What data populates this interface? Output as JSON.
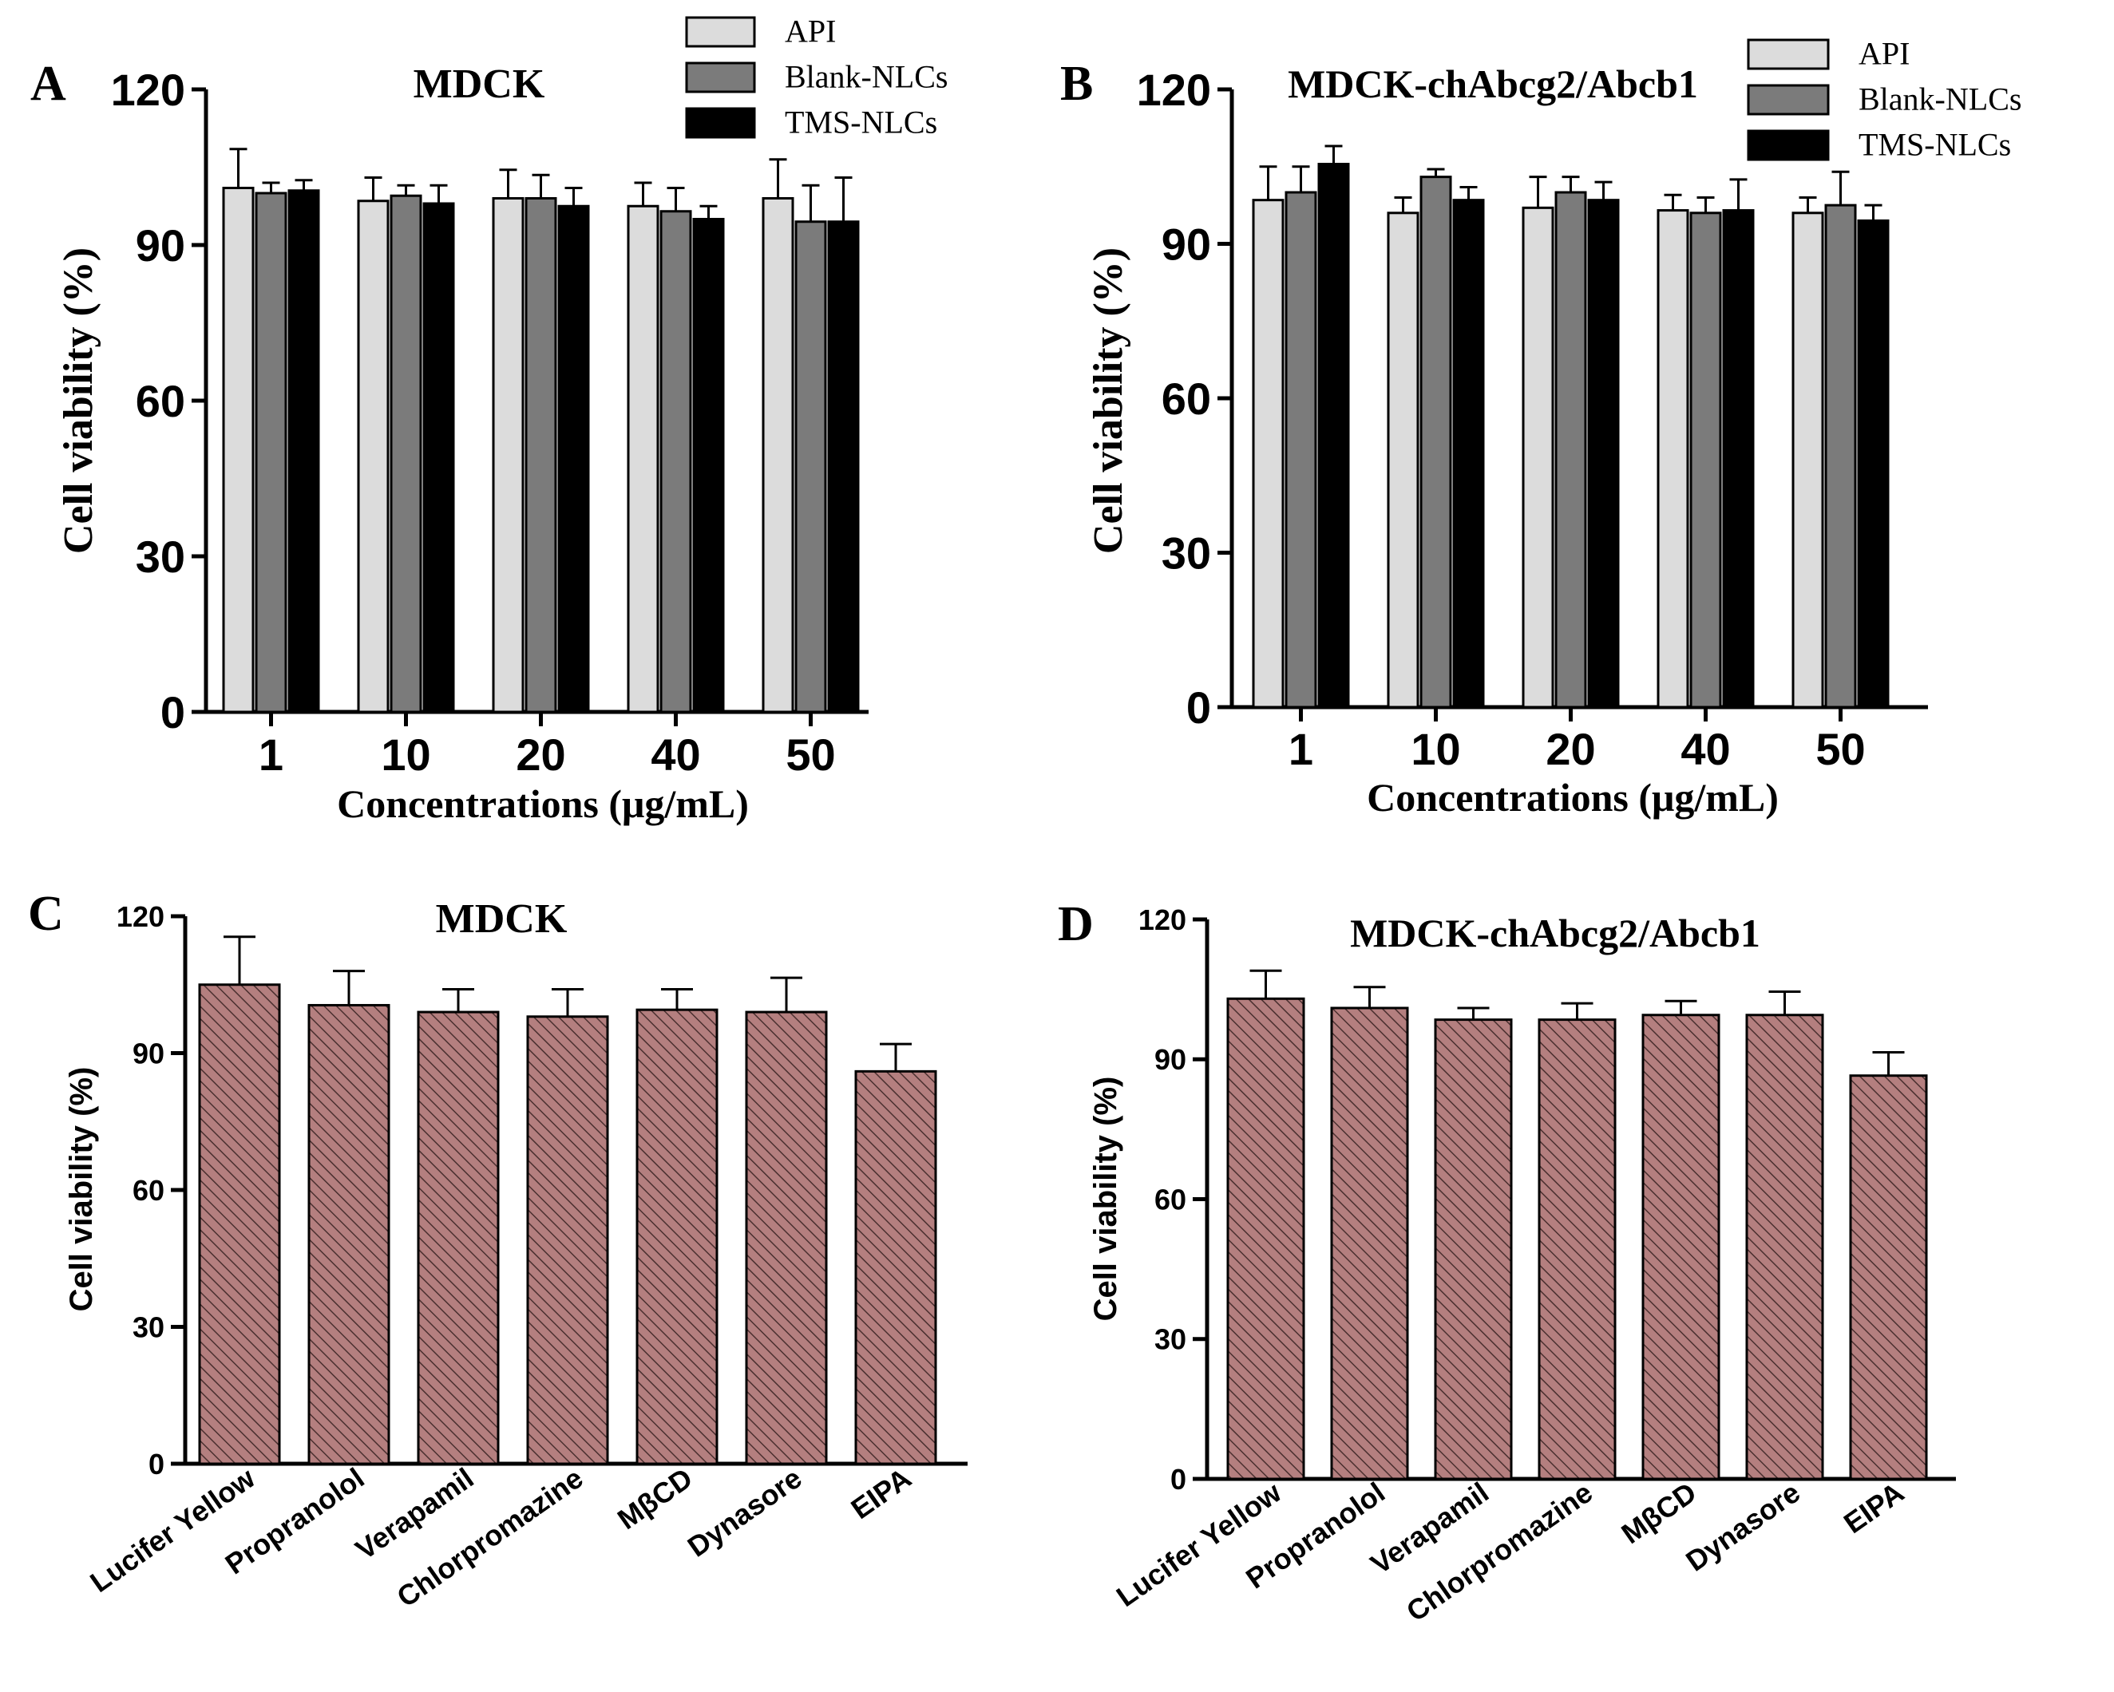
{
  "chart_data": [
    {
      "panel": "A",
      "type": "bar",
      "title": "MDCK",
      "xlabel": "Concentrations (μg/mL)",
      "ylabel": "Cell viability (%)",
      "ylim": [
        0,
        120
      ],
      "yticks": [
        "0",
        "30",
        "60",
        "90",
        "120"
      ],
      "categories": [
        "1",
        "10",
        "20",
        "40",
        "50"
      ],
      "legend": "top-right",
      "series": [
        {
          "name": "API",
          "color": "#dcdcdc",
          "values": [
            101,
            98.5,
            99,
            97.5,
            99
          ],
          "errors": [
            7.5,
            4.5,
            5.5,
            4.5,
            7.5
          ]
        },
        {
          "name": "Blank-NLCs",
          "color": "#7b7b7b",
          "values": [
            100,
            99.5,
            99,
            96.5,
            94.5
          ],
          "errors": [
            2,
            2,
            4.5,
            4.5,
            7
          ]
        },
        {
          "name": "TMS-NLCs",
          "color": "#000000",
          "values": [
            100.5,
            98,
            97.5,
            95,
            94.5
          ],
          "errors": [
            2,
            3.5,
            3.5,
            2.5,
            8.5
          ]
        }
      ]
    },
    {
      "panel": "B",
      "type": "bar",
      "title": "MDCK-chAbcg2/Abcb1",
      "xlabel": "Concentrations (μg/mL)",
      "ylabel": "Cell viability (%)",
      "ylim": [
        0,
        120
      ],
      "yticks": [
        "0",
        "30",
        "60",
        "90",
        "120"
      ],
      "categories": [
        "1",
        "10",
        "20",
        "40",
        "50"
      ],
      "legend": "top-right",
      "series": [
        {
          "name": "API",
          "color": "#dcdcdc",
          "values": [
            98.5,
            96,
            97,
            96.5,
            96
          ],
          "errors": [
            6.5,
            3,
            6,
            3,
            3
          ]
        },
        {
          "name": "Blank-NLCs",
          "color": "#7b7b7b",
          "values": [
            100,
            103,
            100,
            96,
            97.5
          ],
          "errors": [
            5,
            1.5,
            3,
            3,
            6.5
          ]
        },
        {
          "name": "TMS-NLCs",
          "color": "#000000",
          "values": [
            105.5,
            98.5,
            98.5,
            96.5,
            94.5
          ],
          "errors": [
            3.5,
            2.5,
            3.5,
            6,
            3
          ]
        }
      ]
    },
    {
      "panel": "C",
      "type": "bar",
      "title": "MDCK",
      "xlabel": "",
      "ylabel": "Cell viability (%)",
      "ylim": [
        0,
        120
      ],
      "yticks": [
        "0",
        "30",
        "60",
        "90",
        "120"
      ],
      "categories": [
        "Lucifer Yellow",
        "Propranolol",
        "Verapamil",
        "Chlorpromazine",
        "MβCD",
        "Dynasore",
        "EIPA"
      ],
      "series": [
        {
          "color": "#a87474",
          "values": [
            105,
            100.5,
            99,
            98,
            99.5,
            99,
            86
          ],
          "errors": [
            10.5,
            7.5,
            5,
            6,
            4.5,
            7.5,
            6
          ]
        }
      ]
    },
    {
      "panel": "D",
      "type": "bar",
      "title": "MDCK-chAbcg2/Abcb1",
      "xlabel": "",
      "ylabel": "Cell viability (%)",
      "ylim": [
        0,
        120
      ],
      "yticks": [
        "0",
        "30",
        "60",
        "90",
        "120"
      ],
      "categories": [
        "Lucifer Yellow",
        "Propranolol",
        "Verapamil",
        "Chlorpromazine",
        "MβCD",
        "Dynasore",
        "EIPA"
      ],
      "series": [
        {
          "color": "#a87474",
          "values": [
            103,
            101,
            98.5,
            98.5,
            99.5,
            99.5,
            86.5
          ],
          "errors": [
            6,
            4.5,
            2.5,
            3.5,
            3,
            5,
            5
          ]
        }
      ]
    }
  ]
}
